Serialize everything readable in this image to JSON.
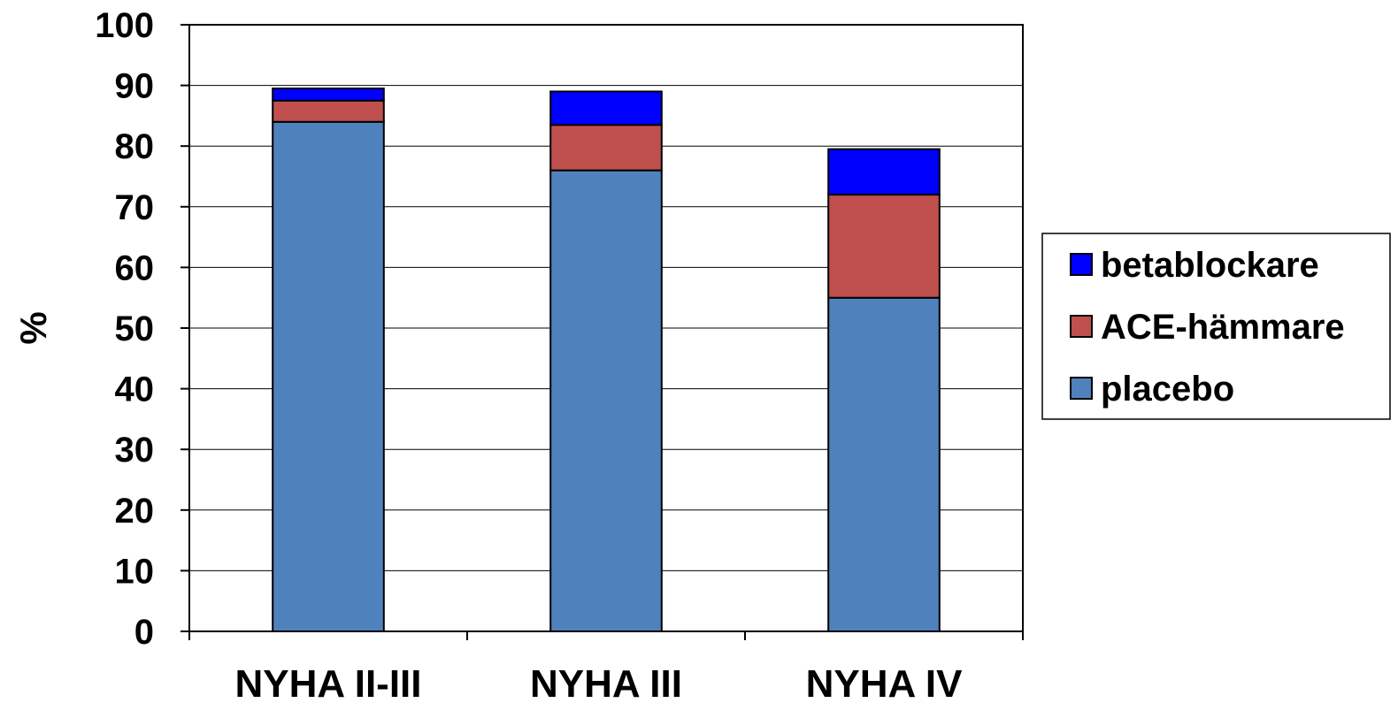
{
  "chart_data": {
    "type": "bar",
    "stacked": true,
    "categories": [
      "NYHA II-III",
      "NYHA III",
      "NYHA IV"
    ],
    "series": [
      {
        "name": "placebo",
        "values": [
          84,
          76,
          55
        ],
        "color": "#4f81bd"
      },
      {
        "name": "ACE-hämmare",
        "values": [
          3.5,
          7.5,
          17
        ],
        "color": "#c0504d"
      },
      {
        "name": "betablockare",
        "values": [
          2,
          5.5,
          7.5
        ],
        "color": "#0000ff"
      }
    ],
    "title": "",
    "xlabel": "",
    "ylabel": "%",
    "ylim": [
      0,
      100
    ],
    "yticks": [
      "0",
      "10",
      "20",
      "30",
      "40",
      "50",
      "60",
      "70",
      "80",
      "90",
      "100"
    ],
    "grid": true,
    "legend_position": "right",
    "legend_order": [
      "betablockare",
      "ACE-hämmare",
      "placebo"
    ]
  }
}
